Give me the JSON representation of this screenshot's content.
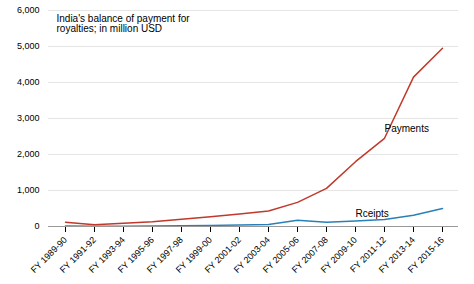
{
  "chart_data": {
    "type": "line",
    "title": "India's balance of payment for\nroyalties; in million USD",
    "categories": [
      "FY 1989-90",
      "FY 1991-92",
      "FY 1993-94",
      "FY 1995-96",
      "FY 1997-98",
      "FY 1999-00",
      "FY 2001-02",
      "FY 2003-04",
      "FY 2005-06",
      "FY 2007-08",
      "FY 2009-10",
      "FY 2011-12",
      "FY 2013-14",
      "FY 2015-16"
    ],
    "series": [
      {
        "name": "Payments",
        "color": "#c0392b",
        "values": [
          120,
          50,
          90,
          130,
          200,
          270,
          350,
          430,
          670,
          1060,
          1800,
          2450,
          4150,
          4950
        ],
        "label_x": "FY 2011-12",
        "label_y": 2630
      },
      {
        "name": "Rceipts",
        "color": "#2980b9",
        "values": [
          15,
          5,
          10,
          15,
          20,
          30,
          45,
          55,
          175,
          115,
          155,
          195,
          310,
          500
        ],
        "label_x": "FY 2009-10",
        "label_y": 275
      }
    ],
    "ylim": [
      0,
      6000
    ],
    "yticks": [
      0,
      1000,
      2000,
      3000,
      4000,
      5000,
      6000
    ],
    "grid": true
  }
}
